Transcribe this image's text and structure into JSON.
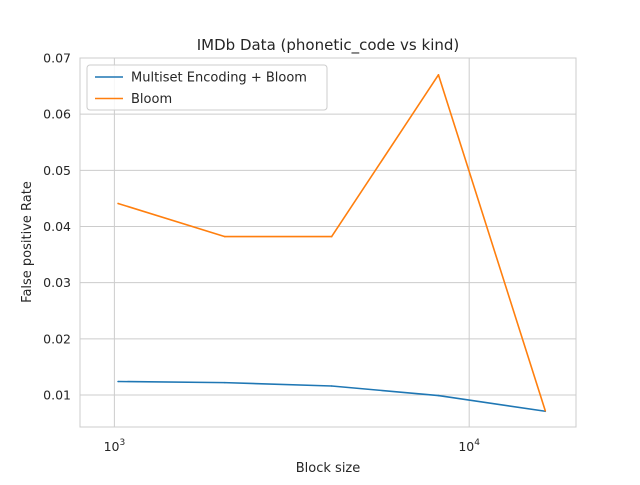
{
  "chart_data": {
    "type": "line",
    "title": "IMDb Data (phonetic_code vs kind)",
    "xlabel": "Block size",
    "ylabel": "False positive Rate",
    "x_scale": "log",
    "xlim": [
      800,
      20000
    ],
    "ylim": [
      0.0043,
      0.07
    ],
    "x": [
      1024,
      2048,
      4096,
      8192,
      16384
    ],
    "x_ticks": [
      {
        "value": 1000,
        "base": "10",
        "exp": "3"
      },
      {
        "value": 10000,
        "base": "10",
        "exp": "4"
      }
    ],
    "y_ticks": [
      {
        "value": 0.01,
        "label": "0.01"
      },
      {
        "value": 0.02,
        "label": "0.02"
      },
      {
        "value": 0.03,
        "label": "0.03"
      },
      {
        "value": 0.04,
        "label": "0.04"
      },
      {
        "value": 0.05,
        "label": "0.05"
      },
      {
        "value": 0.06,
        "label": "0.06"
      },
      {
        "value": 0.07,
        "label": "0.07"
      }
    ],
    "series": [
      {
        "name": "Multiset Encoding + Bloom",
        "color": "#1f77b4",
        "values": [
          0.0124,
          0.0122,
          0.0116,
          0.0099,
          0.0071
        ]
      },
      {
        "name": "Bloom",
        "color": "#ff7f0e",
        "values": [
          0.0441,
          0.0382,
          0.0382,
          0.067,
          0.0072
        ]
      }
    ],
    "grid": true,
    "legend_position": "top-left"
  }
}
